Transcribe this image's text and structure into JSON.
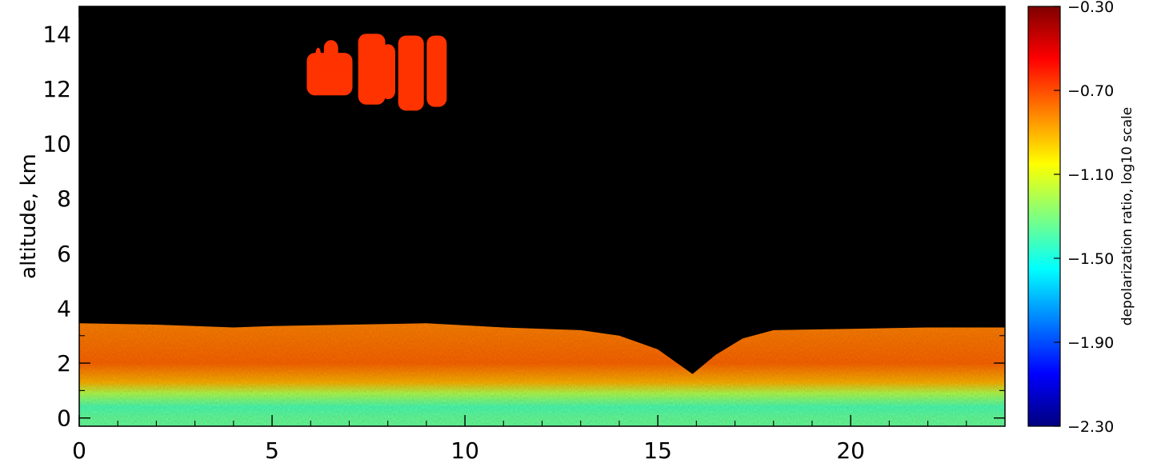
{
  "chart_data": {
    "type": "heatmap",
    "title": "",
    "xlabel": "",
    "ylabel": "altitude,  km",
    "xlim": [
      0,
      24
    ],
    "ylim": [
      -0.3,
      15
    ],
    "x_ticks": [
      {
        "value": 0,
        "label": "0"
      },
      {
        "value": 5,
        "label": "5"
      },
      {
        "value": 10,
        "label": "10"
      },
      {
        "value": 15,
        "label": "15"
      },
      {
        "value": 20,
        "label": "20"
      }
    ],
    "y_ticks": [
      {
        "value": 0,
        "label": "0"
      },
      {
        "value": 2,
        "label": "2"
      },
      {
        "value": 4,
        "label": "4"
      },
      {
        "value": 6,
        "label": "6"
      },
      {
        "value": 8,
        "label": "8"
      },
      {
        "value": 10,
        "label": "10"
      },
      {
        "value": 12,
        "label": "12"
      },
      {
        "value": 14,
        "label": "14"
      }
    ],
    "colorbar": {
      "label": "depolarization  ratio,  log10  scale",
      "range": [
        -2.3,
        -0.3
      ],
      "ticks": [
        {
          "value": -0.3,
          "label": "−0.30"
        },
        {
          "value": -0.7,
          "label": "−0.70"
        },
        {
          "value": -1.1,
          "label": "−1.10"
        },
        {
          "value": -1.5,
          "label": "−1.50"
        },
        {
          "value": -1.9,
          "label": "−1.90"
        },
        {
          "value": -2.3,
          "label": "−2.30"
        }
      ],
      "colors": [
        "#00007f",
        "#0000ff",
        "#007fff",
        "#00ffff",
        "#7fff7f",
        "#ffff00",
        "#ff7f00",
        "#ff0000",
        "#7f0000"
      ]
    },
    "background_color": "#000000",
    "regions": [
      {
        "name": "boundary layer",
        "top_km": [
          [
            0,
            3.45
          ],
          [
            2,
            3.4
          ],
          [
            4,
            3.3
          ],
          [
            5,
            3.35
          ],
          [
            7,
            3.4
          ],
          [
            9,
            3.45
          ],
          [
            11,
            3.3
          ],
          [
            13,
            3.2
          ],
          [
            14,
            3.0
          ],
          [
            15,
            2.5
          ],
          [
            15.9,
            1.6
          ],
          [
            16.5,
            2.3
          ],
          [
            17.2,
            2.9
          ],
          [
            18,
            3.2
          ],
          [
            20,
            3.25
          ],
          [
            22,
            3.3
          ],
          [
            24,
            3.3
          ]
        ],
        "color_stops_km": [
          {
            "alt": 0.0,
            "value": -1.35
          },
          {
            "alt": 0.4,
            "value": -1.4
          },
          {
            "alt": 0.9,
            "value": -1.2
          },
          {
            "alt": 1.3,
            "value": -0.9
          },
          {
            "alt": 2.0,
            "value": -0.75
          },
          {
            "alt": 3.3,
            "value": -0.8
          }
        ]
      },
      {
        "name": "cirrus",
        "x_range": [
          5.9,
          9.6
        ],
        "alt_range_km": [
          11.2,
          14.0
        ],
        "value": -0.65
      }
    ]
  }
}
